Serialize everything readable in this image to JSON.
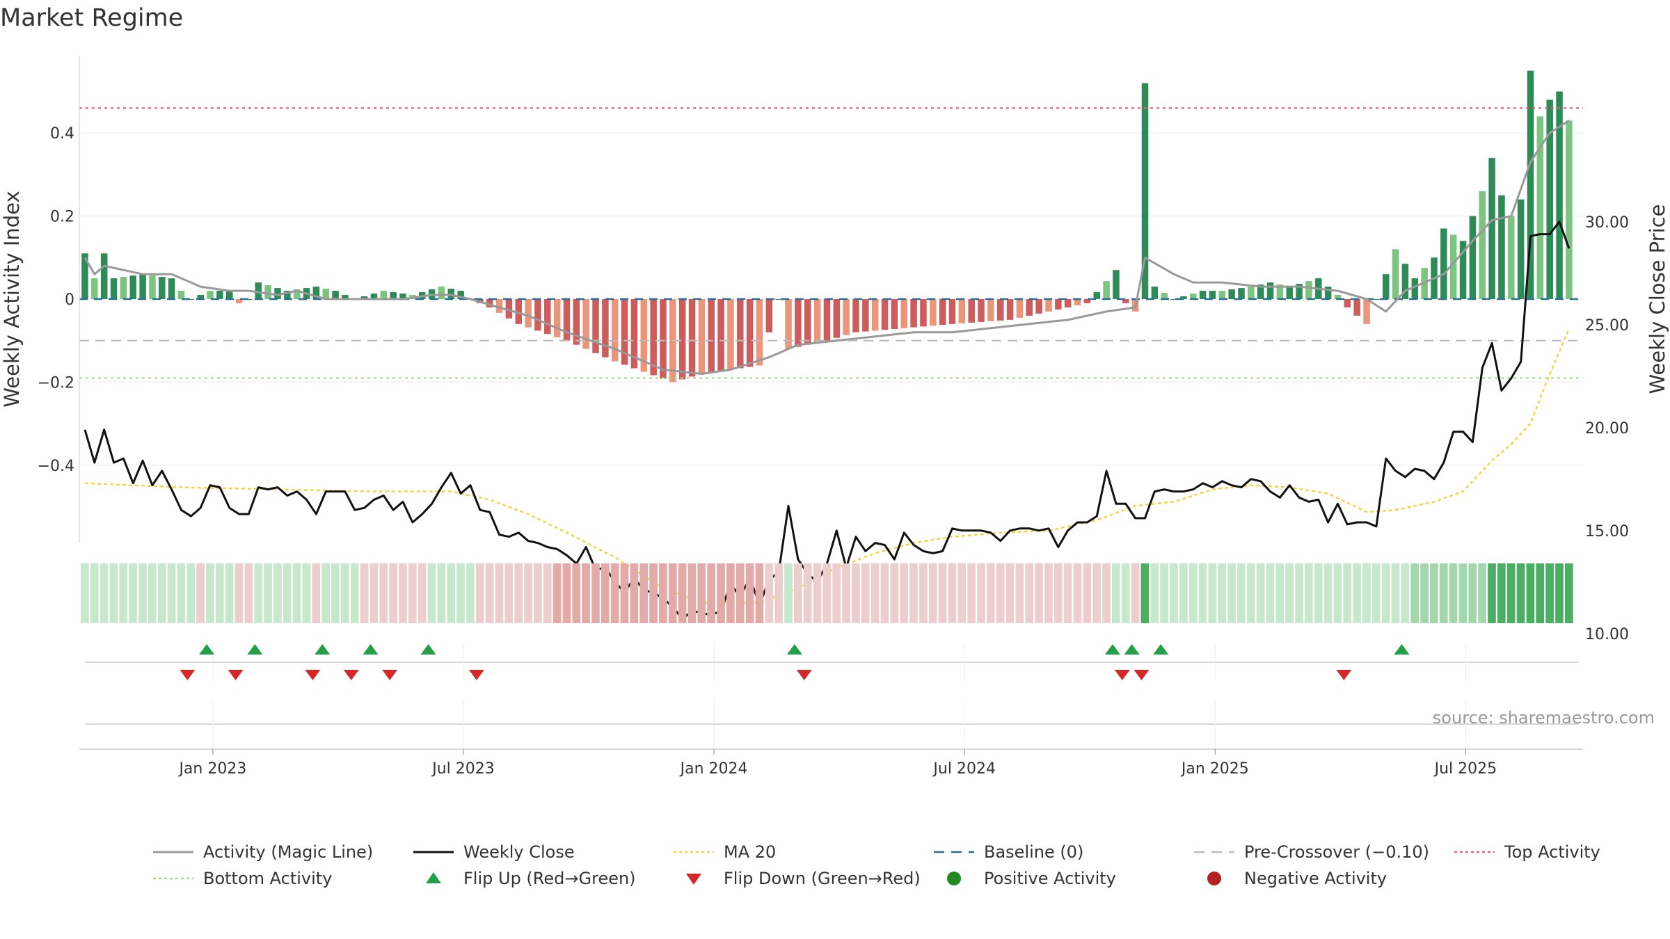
{
  "title": "Market Regime",
  "source": "source: sharemaestro.com",
  "colors": {
    "pos_strong": "#2e8b57",
    "pos_light": "#7cc47f",
    "neg_strong": "#cd5c5c",
    "neg_light": "#e9967a",
    "close": "#111111",
    "ma": "#f0d43a",
    "magic": "#999999",
    "baseline": "#2a6f97",
    "precross": "#bbbbbb",
    "top": "#e06080",
    "bottom": "#a8d88a",
    "flip_up": "#23a047",
    "flip_down": "#d62728",
    "pos_dot": "#228b22",
    "neg_dot": "#b22222"
  },
  "chart_data": {
    "type": "bar",
    "title": "Market Regime",
    "ylabel_left": "Weekly Activity Index",
    "ylabel_right": "Weekly Close Price",
    "left_ticks": [
      "0.4",
      "0.2",
      "0",
      "−0.2",
      "−0.4"
    ],
    "left_tick_values": [
      0.4,
      0.2,
      0,
      -0.2,
      -0.4
    ],
    "right_ticks": [
      "30.00",
      "25.00",
      "20.00",
      "15.00",
      "10.00"
    ],
    "right_tick_values": [
      30,
      25,
      20,
      15,
      10
    ],
    "ylim_left": [
      -0.585,
      0.585
    ],
    "ylim_right": [
      9.08,
      32.56
    ],
    "x_ticks": [
      "Jan 2023",
      "Jul 2023",
      "Jan 2024",
      "Jul 2024",
      "Jan 2025",
      "Jul 2025"
    ],
    "x_tick_weeks": [
      14,
      40,
      66,
      92,
      118,
      144
    ],
    "n_weeks": 157,
    "reference_lines": {
      "top_activity": 0.46,
      "bottom_activity": -0.19,
      "pre_crossover": -0.1,
      "baseline": 0
    },
    "activity_keyframes": [
      [
        0,
        0.11
      ],
      [
        1,
        0.05
      ],
      [
        2,
        0.11
      ],
      [
        3,
        0.05
      ],
      [
        6,
        0.06
      ],
      [
        9,
        0.05
      ],
      [
        10,
        0.02
      ],
      [
        11,
        0.0
      ],
      [
        13,
        0.02
      ],
      [
        14,
        0.02
      ],
      [
        15,
        0.02
      ],
      [
        16,
        -0.01
      ],
      [
        17,
        0.0
      ],
      [
        18,
        0.04
      ],
      [
        21,
        0.02
      ],
      [
        24,
        0.03
      ],
      [
        26,
        0.02
      ],
      [
        28,
        0.0
      ],
      [
        31,
        0.02
      ],
      [
        34,
        0.01
      ],
      [
        37,
        0.03
      ],
      [
        39,
        0.02
      ],
      [
        40,
        0.0
      ],
      [
        42,
        -0.02
      ],
      [
        45,
        -0.06
      ],
      [
        50,
        -0.1
      ],
      [
        55,
        -0.15
      ],
      [
        61,
        -0.2
      ],
      [
        64,
        -0.18
      ],
      [
        70,
        -0.16
      ],
      [
        72,
        0.0
      ],
      [
        73,
        -0.12
      ],
      [
        77,
        -0.1
      ],
      [
        80,
        -0.08
      ],
      [
        85,
        -0.07
      ],
      [
        90,
        -0.06
      ],
      [
        96,
        -0.05
      ],
      [
        100,
        -0.03
      ],
      [
        104,
        -0.01
      ],
      [
        107,
        0.07
      ],
      [
        108,
        -0.01
      ],
      [
        109,
        -0.03
      ],
      [
        110,
        0.52
      ],
      [
        111,
        0.03
      ],
      [
        113,
        0.0
      ],
      [
        116,
        0.02
      ],
      [
        118,
        0.02
      ],
      [
        121,
        0.03
      ],
      [
        123,
        0.04
      ],
      [
        125,
        0.03
      ],
      [
        128,
        0.05
      ],
      [
        130,
        0.01
      ],
      [
        131,
        -0.02
      ],
      [
        133,
        -0.06
      ],
      [
        136,
        0.12
      ],
      [
        138,
        0.05
      ],
      [
        140,
        0.1
      ],
      [
        141,
        0.17
      ],
      [
        143,
        0.14
      ],
      [
        145,
        0.26
      ],
      [
        146,
        0.34
      ],
      [
        147,
        0.25
      ],
      [
        148,
        0.2
      ],
      [
        149,
        0.24
      ],
      [
        150,
        0.55
      ],
      [
        151,
        0.44
      ],
      [
        152,
        0.48
      ],
      [
        153,
        0.5
      ],
      [
        154,
        0.43
      ]
    ],
    "magic_keyframes": [
      [
        0,
        0.1
      ],
      [
        1,
        0.06
      ],
      [
        2,
        0.08
      ],
      [
        4,
        0.07
      ],
      [
        6,
        0.06
      ],
      [
        9,
        0.06
      ],
      [
        12,
        0.03
      ],
      [
        15,
        0.02
      ],
      [
        17,
        0.02
      ],
      [
        20,
        0.01
      ],
      [
        22,
        0.02
      ],
      [
        25,
        0.0
      ],
      [
        28,
        0.0
      ],
      [
        30,
        0.0
      ],
      [
        33,
        0.0
      ],
      [
        36,
        0.01
      ],
      [
        38,
        0.01
      ],
      [
        40,
        0.0
      ],
      [
        43,
        -0.02
      ],
      [
        46,
        -0.04
      ],
      [
        50,
        -0.08
      ],
      [
        55,
        -0.12
      ],
      [
        60,
        -0.17
      ],
      [
        64,
        -0.18
      ],
      [
        67,
        -0.17
      ],
      [
        71,
        -0.14
      ],
      [
        74,
        -0.11
      ],
      [
        78,
        -0.1
      ],
      [
        82,
        -0.09
      ],
      [
        86,
        -0.08
      ],
      [
        90,
        -0.08
      ],
      [
        94,
        -0.07
      ],
      [
        98,
        -0.06
      ],
      [
        102,
        -0.05
      ],
      [
        106,
        -0.03
      ],
      [
        109,
        -0.02
      ],
      [
        110,
        0.1
      ],
      [
        113,
        0.06
      ],
      [
        115,
        0.04
      ],
      [
        118,
        0.04
      ],
      [
        122,
        0.03
      ],
      [
        126,
        0.03
      ],
      [
        130,
        0.02
      ],
      [
        133,
        0.0
      ],
      [
        135,
        -0.03
      ],
      [
        137,
        0.02
      ],
      [
        141,
        0.06
      ],
      [
        144,
        0.14
      ],
      [
        146,
        0.19
      ],
      [
        148,
        0.2
      ],
      [
        150,
        0.33
      ],
      [
        152,
        0.4
      ],
      [
        154,
        0.43
      ]
    ],
    "close_keyframes": [
      [
        0,
        19.9
      ],
      [
        1,
        18.3
      ],
      [
        2,
        19.9
      ],
      [
        3,
        18.3
      ],
      [
        4,
        18.5
      ],
      [
        5,
        17.3
      ],
      [
        6,
        18.4
      ],
      [
        7,
        17.2
      ],
      [
        8,
        17.9
      ],
      [
        9,
        17.0
      ],
      [
        10,
        16.0
      ],
      [
        11,
        15.7
      ],
      [
        12,
        16.1
      ],
      [
        13,
        17.2
      ],
      [
        14,
        17.1
      ],
      [
        15,
        16.1
      ],
      [
        16,
        15.8
      ],
      [
        17,
        15.8
      ],
      [
        18,
        17.1
      ],
      [
        19,
        17.0
      ],
      [
        20,
        17.1
      ],
      [
        21,
        16.7
      ],
      [
        22,
        16.9
      ],
      [
        23,
        16.5
      ],
      [
        24,
        15.8
      ],
      [
        25,
        16.9
      ],
      [
        26,
        16.9
      ],
      [
        27,
        16.9
      ],
      [
        28,
        16.0
      ],
      [
        29,
        16.1
      ],
      [
        30,
        16.5
      ],
      [
        31,
        16.7
      ],
      [
        32,
        16.0
      ],
      [
        33,
        16.4
      ],
      [
        34,
        15.4
      ],
      [
        35,
        15.8
      ],
      [
        36,
        16.3
      ],
      [
        37,
        17.1
      ],
      [
        38,
        17.8
      ],
      [
        39,
        16.8
      ],
      [
        40,
        17.2
      ],
      [
        41,
        16.0
      ],
      [
        42,
        15.9
      ],
      [
        43,
        14.8
      ],
      [
        44,
        14.7
      ],
      [
        45,
        14.9
      ],
      [
        46,
        14.5
      ],
      [
        47,
        14.4
      ],
      [
        48,
        14.2
      ],
      [
        49,
        14.1
      ],
      [
        50,
        13.8
      ],
      [
        51,
        13.4
      ],
      [
        52,
        14.2
      ],
      [
        53,
        13.1
      ],
      [
        54,
        13.2
      ],
      [
        55,
        12.5
      ],
      [
        56,
        12.0
      ],
      [
        57,
        12.7
      ],
      [
        58,
        12.1
      ],
      [
        59,
        12.0
      ],
      [
        60,
        11.7
      ],
      [
        61,
        11.3
      ],
      [
        62,
        10.7
      ],
      [
        63,
        11.1
      ],
      [
        64,
        11.0
      ],
      [
        65,
        10.9
      ],
      [
        66,
        11.1
      ],
      [
        67,
        12.4
      ],
      [
        68,
        11.8
      ],
      [
        69,
        12.7
      ],
      [
        70,
        11.4
      ],
      [
        71,
        12.6
      ],
      [
        72,
        13.0
      ],
      [
        73,
        16.2
      ],
      [
        74,
        13.6
      ],
      [
        75,
        12.9
      ],
      [
        76,
        12.5
      ],
      [
        77,
        13.4
      ],
      [
        78,
        15.0
      ],
      [
        79,
        13.2
      ],
      [
        80,
        14.7
      ],
      [
        81,
        14.0
      ],
      [
        82,
        14.4
      ],
      [
        83,
        14.3
      ],
      [
        84,
        13.6
      ],
      [
        85,
        14.9
      ],
      [
        86,
        14.3
      ],
      [
        87,
        14.0
      ],
      [
        88,
        13.9
      ],
      [
        89,
        14.0
      ],
      [
        90,
        15.1
      ],
      [
        91,
        15.0
      ],
      [
        92,
        15.0
      ],
      [
        93,
        15.0
      ],
      [
        94,
        14.9
      ],
      [
        95,
        14.5
      ],
      [
        96,
        15.0
      ],
      [
        97,
        15.1
      ],
      [
        98,
        15.1
      ],
      [
        99,
        15.0
      ],
      [
        100,
        15.1
      ],
      [
        101,
        14.2
      ],
      [
        102,
        15.0
      ],
      [
        103,
        15.4
      ],
      [
        104,
        15.4
      ],
      [
        105,
        15.7
      ],
      [
        106,
        17.9
      ],
      [
        107,
        16.3
      ],
      [
        108,
        16.3
      ],
      [
        109,
        15.6
      ],
      [
        110,
        15.6
      ],
      [
        111,
        16.9
      ],
      [
        112,
        17.0
      ],
      [
        113,
        16.9
      ],
      [
        114,
        16.9
      ],
      [
        115,
        17.0
      ],
      [
        116,
        17.3
      ],
      [
        117,
        17.1
      ],
      [
        118,
        17.4
      ],
      [
        119,
        17.2
      ],
      [
        120,
        17.1
      ],
      [
        121,
        17.5
      ],
      [
        122,
        17.4
      ],
      [
        123,
        16.9
      ],
      [
        124,
        16.6
      ],
      [
        125,
        17.2
      ],
      [
        126,
        16.6
      ],
      [
        127,
        16.4
      ],
      [
        128,
        16.5
      ],
      [
        129,
        15.4
      ],
      [
        130,
        16.3
      ],
      [
        131,
        15.3
      ],
      [
        132,
        15.4
      ],
      [
        133,
        15.4
      ],
      [
        134,
        15.2
      ],
      [
        135,
        18.5
      ],
      [
        136,
        17.9
      ],
      [
        137,
        17.6
      ],
      [
        138,
        18.0
      ],
      [
        139,
        17.9
      ],
      [
        140,
        17.5
      ],
      [
        141,
        18.3
      ],
      [
        142,
        19.8
      ],
      [
        143,
        19.8
      ],
      [
        144,
        19.3
      ],
      [
        145,
        22.9
      ],
      [
        146,
        24.1
      ],
      [
        147,
        21.8
      ],
      [
        148,
        22.4
      ],
      [
        149,
        23.2
      ],
      [
        150,
        29.3
      ],
      [
        151,
        29.4
      ],
      [
        152,
        29.4
      ],
      [
        153,
        30.0
      ],
      [
        154,
        28.7
      ]
    ],
    "ma_keyframes": [
      [
        0,
        17.3
      ],
      [
        10,
        17.1
      ],
      [
        20,
        17.0
      ],
      [
        30,
        16.9
      ],
      [
        38,
        16.9
      ],
      [
        42,
        16.5
      ],
      [
        46,
        15.8
      ],
      [
        50,
        14.9
      ],
      [
        55,
        13.7
      ],
      [
        60,
        12.2
      ],
      [
        64,
        11.5
      ],
      [
        70,
        11.5
      ],
      [
        74,
        12.2
      ],
      [
        78,
        13.2
      ],
      [
        82,
        13.9
      ],
      [
        86,
        14.4
      ],
      [
        90,
        14.7
      ],
      [
        95,
        14.9
      ],
      [
        100,
        15.0
      ],
      [
        105,
        15.5
      ],
      [
        109,
        16.2
      ],
      [
        113,
        16.4
      ],
      [
        117,
        17.0
      ],
      [
        121,
        17.2
      ],
      [
        125,
        17.1
      ],
      [
        129,
        16.8
      ],
      [
        133,
        15.9
      ],
      [
        136,
        16.0
      ],
      [
        140,
        16.4
      ],
      [
        143,
        16.9
      ],
      [
        146,
        18.4
      ],
      [
        148,
        19.2
      ],
      [
        150,
        20.2
      ],
      [
        152,
        22.6
      ],
      [
        154,
        24.8
      ]
    ],
    "regime_green_weeks": [
      [
        0,
        11
      ],
      [
        13,
        15
      ],
      [
        18,
        23
      ],
      [
        25,
        28
      ],
      [
        36,
        40
      ],
      [
        73,
        73
      ],
      [
        107,
        108
      ],
      [
        110,
        137
      ],
      [
        138,
        154
      ]
    ],
    "regime_strong_weeks": [
      [
        110,
        110
      ],
      [
        146,
        149
      ],
      [
        150,
        154
      ]
    ],
    "flip_up_weeks": [
      13,
      18,
      25,
      30,
      36,
      74,
      107,
      109,
      112,
      137
    ],
    "flip_down_weeks": [
      11,
      16,
      24,
      28,
      32,
      41,
      75,
      108,
      110,
      131
    ]
  },
  "legend": [
    {
      "label": "Activity (Magic Line)",
      "icon": "solid-line",
      "color": "#999999"
    },
    {
      "label": "Weekly Close",
      "icon": "solid-line",
      "color": "#111111"
    },
    {
      "label": "MA 20",
      "icon": "dotted-line",
      "color": "#f0d43a"
    },
    {
      "label": "Baseline (0)",
      "icon": "dashed-line",
      "color": "#2a6f97"
    },
    {
      "label": "Pre-Crossover (−0.10)",
      "icon": "dashed-line",
      "color": "#bbbbbb"
    },
    {
      "label": "Top Activity",
      "icon": "dotted-line",
      "color": "#e06080"
    },
    {
      "label": "Bottom Activity",
      "icon": "dotted-line",
      "color": "#a8d88a"
    },
    {
      "label": "Flip Up (Red→Green)",
      "icon": "triangle-up",
      "color": "#23a047"
    },
    {
      "label": "Flip Down (Green→Red)",
      "icon": "triangle-down",
      "color": "#d62728"
    },
    {
      "label": "Positive Activity",
      "icon": "circle",
      "color": "#228b22"
    },
    {
      "label": "Negative Activity",
      "icon": "circle",
      "color": "#b22222"
    }
  ]
}
